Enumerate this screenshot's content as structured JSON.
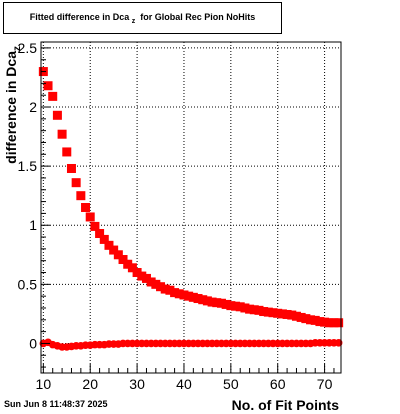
{
  "title_main": "Fitted difference in Dca",
  "title_sub": "z",
  "title_rest": "for Global Rec Pion NoHits",
  "footer_date": "Sun Jun  8 11:48:37 2025",
  "chart_data": {
    "type": "scatter",
    "title": "Fitted difference in Dca z for Global Rec Pion NoHits",
    "xlabel": "No. of Fit Points",
    "ylabel": "difference in Dca_z",
    "xlim": [
      9.5,
      73.5
    ],
    "ylim": [
      -0.25,
      2.55
    ],
    "x_ticks": [
      10,
      20,
      30,
      40,
      50,
      60,
      70
    ],
    "y_ticks": [
      0,
      0.5,
      1,
      1.5,
      2,
      2.5
    ],
    "y_tick_labels": [
      "0",
      "0.5",
      "1",
      "1.5",
      "2",
      "2.5"
    ],
    "grid": true,
    "marker_color": "#ff0000",
    "series": [
      {
        "marker": "square",
        "x": [
          10,
          11,
          12,
          13,
          14,
          15,
          16,
          17,
          18,
          19,
          20,
          21,
          22,
          23,
          24,
          25,
          26,
          27,
          28,
          29,
          30,
          31,
          32,
          33,
          34,
          35,
          36,
          37,
          38,
          39,
          40,
          41,
          42,
          43,
          44,
          45,
          46,
          47,
          48,
          49,
          50,
          51,
          52,
          53,
          54,
          55,
          56,
          57,
          58,
          59,
          60,
          61,
          62,
          63,
          64,
          65,
          66,
          67,
          68,
          69,
          70,
          71,
          72,
          73
        ],
        "y": [
          2.3,
          2.18,
          2.09,
          1.93,
          1.77,
          1.62,
          1.48,
          1.36,
          1.25,
          1.15,
          1.07,
          0.99,
          0.93,
          0.88,
          0.83,
          0.79,
          0.75,
          0.71,
          0.67,
          0.64,
          0.6,
          0.57,
          0.55,
          0.52,
          0.5,
          0.48,
          0.46,
          0.45,
          0.43,
          0.42,
          0.41,
          0.4,
          0.39,
          0.38,
          0.37,
          0.36,
          0.35,
          0.345,
          0.34,
          0.33,
          0.32,
          0.315,
          0.31,
          0.3,
          0.29,
          0.285,
          0.28,
          0.27,
          0.265,
          0.26,
          0.255,
          0.25,
          0.245,
          0.24,
          0.23,
          0.22,
          0.21,
          0.2,
          0.195,
          0.185,
          0.18,
          0.175,
          0.175,
          0.175
        ]
      },
      {
        "marker": "circle",
        "x": [
          10,
          11,
          12,
          13,
          14,
          15,
          16,
          17,
          18,
          19,
          20,
          21,
          22,
          23,
          24,
          25,
          26,
          27,
          28,
          29,
          30,
          31,
          32,
          33,
          34,
          35,
          36,
          37,
          38,
          39,
          40,
          41,
          42,
          43,
          44,
          45,
          46,
          47,
          48,
          49,
          50,
          51,
          52,
          53,
          54,
          55,
          56,
          57,
          58,
          59,
          60,
          61,
          62,
          63,
          64,
          65,
          66,
          67,
          68,
          69,
          70,
          71,
          72,
          73
        ],
        "y": [
          0.0,
          0.01,
          -0.01,
          -0.02,
          -0.03,
          -0.03,
          -0.025,
          -0.02,
          -0.02,
          -0.015,
          -0.015,
          -0.01,
          -0.01,
          -0.01,
          -0.005,
          -0.005,
          -0.005,
          0.0,
          0.0,
          0.0,
          0.0,
          0.0,
          0.0,
          0.0,
          0.0,
          0.0,
          0.0,
          0.0,
          0.0,
          0.0,
          0.0,
          0.0,
          0.0,
          0.0,
          0.0,
          0.0,
          0.0,
          0.0,
          0.0,
          0.0,
          0.0,
          0.0,
          0.0,
          0.0,
          0.0,
          0.0,
          0.0,
          0.0,
          0.0,
          0.0,
          0.0,
          0.0,
          0.0,
          0.0,
          0.0,
          0.0,
          0.0,
          0.0,
          0.005,
          0.005,
          0.005,
          0.005,
          0.005,
          0.005
        ]
      }
    ]
  }
}
